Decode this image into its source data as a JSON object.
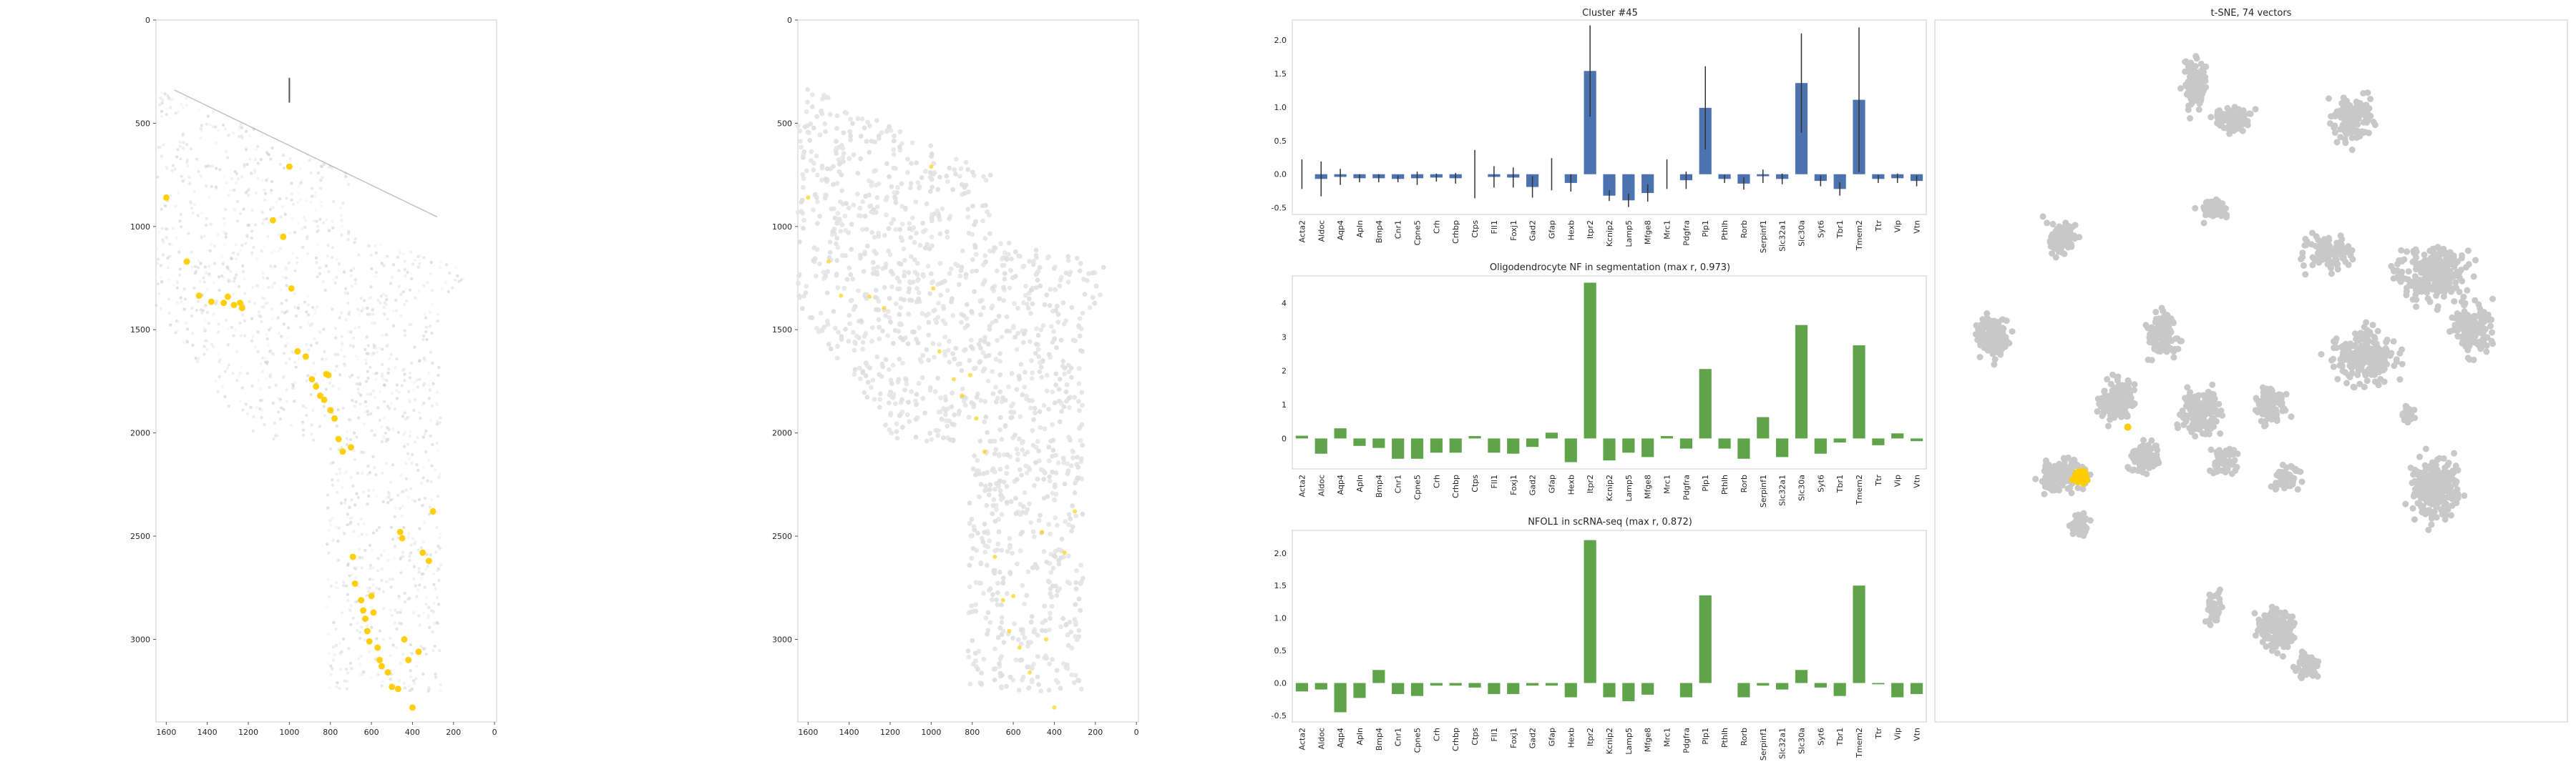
{
  "colors": {
    "bar_blue": "#4c72b0",
    "bar_green": "#5fa34b",
    "highlight": "#ffcc00",
    "tsne_grey": "#c8c8c8",
    "cell_grey": "#e2e2e2",
    "axis": "#cccccc"
  },
  "genes": [
    "Acta2",
    "Aldoc",
    "Aqp4",
    "Apln",
    "Bmp4",
    "Cnr1",
    "Cpne5",
    "Crh",
    "Crhbp",
    "Ctps",
    "Fll1",
    "Foxj1",
    "Gad2",
    "Gfap",
    "Hexb",
    "Itpr2",
    "Kcnip2",
    "Lamp5",
    "Mfge8",
    "Mrc1",
    "Pdgfra",
    "Plp1",
    "Pthlh",
    "Rorb",
    "Serpinf1",
    "Slc32a1",
    "Slc30a",
    "Syt6",
    "Tbr1",
    "Tmem2",
    "Ttr",
    "Vip",
    "Vtn"
  ],
  "chart_data": [
    {
      "type": "scatter",
      "id": "spatial-raw",
      "title": "",
      "x_ticks": [
        "1600",
        "1400",
        "1200",
        "1000",
        "800",
        "600",
        "400",
        "200",
        "0"
      ],
      "y_ticks": [
        "0",
        "500",
        "1000",
        "1500",
        "2000",
        "2500",
        "3000"
      ],
      "xlim": [
        1650,
        -10
      ],
      "ylim": [
        0,
        3400
      ],
      "highlighted_cells": [
        [
          1600,
          860
        ],
        [
          1500,
          1170
        ],
        [
          1440,
          1335
        ],
        [
          1380,
          1365
        ],
        [
          1320,
          1370
        ],
        [
          1300,
          1340
        ],
        [
          1270,
          1380
        ],
        [
          1240,
          1370
        ],
        [
          1230,
          1395
        ],
        [
          1080,
          970
        ],
        [
          1030,
          1050
        ],
        [
          1000,
          710
        ],
        [
          990,
          1300
        ],
        [
          960,
          1605
        ],
        [
          920,
          1630
        ],
        [
          890,
          1740
        ],
        [
          870,
          1775
        ],
        [
          850,
          1820
        ],
        [
          830,
          1840
        ],
        [
          820,
          1715
        ],
        [
          810,
          1720
        ],
        [
          800,
          1890
        ],
        [
          780,
          1930
        ],
        [
          760,
          2030
        ],
        [
          740,
          2090
        ],
        [
          700,
          2070
        ],
        [
          690,
          2600
        ],
        [
          680,
          2730
        ],
        [
          650,
          2810
        ],
        [
          640,
          2860
        ],
        [
          630,
          2900
        ],
        [
          620,
          2960
        ],
        [
          610,
          3010
        ],
        [
          600,
          2790
        ],
        [
          590,
          2870
        ],
        [
          570,
          3040
        ],
        [
          560,
          3100
        ],
        [
          550,
          3130
        ],
        [
          520,
          3160
        ],
        [
          500,
          3230
        ],
        [
          470,
          3240
        ],
        [
          460,
          2480
        ],
        [
          450,
          2510
        ],
        [
          440,
          3000
        ],
        [
          420,
          3100
        ],
        [
          400,
          3330
        ],
        [
          370,
          3060
        ],
        [
          350,
          2580
        ],
        [
          320,
          2620
        ],
        [
          300,
          2380
        ]
      ]
    },
    {
      "type": "scatter",
      "id": "spatial-segmentation",
      "title": "",
      "x_ticks": [
        "1600",
        "1400",
        "1200",
        "1000",
        "800",
        "600",
        "400",
        "200",
        "0"
      ],
      "y_ticks": [
        "0",
        "500",
        "1000",
        "1500",
        "2000",
        "2500",
        "3000"
      ],
      "xlim": [
        1650,
        -10
      ],
      "ylim": [
        0,
        3400
      ],
      "highlighted_cells": [
        [
          1600,
          860
        ],
        [
          1500,
          1170
        ],
        [
          1440,
          1335
        ],
        [
          1300,
          1340
        ],
        [
          1230,
          1395
        ],
        [
          1000,
          710
        ],
        [
          990,
          1300
        ],
        [
          960,
          1605
        ],
        [
          890,
          1740
        ],
        [
          850,
          1820
        ],
        [
          810,
          1720
        ],
        [
          780,
          1930
        ],
        [
          740,
          2090
        ],
        [
          690,
          2600
        ],
        [
          650,
          2810
        ],
        [
          620,
          2960
        ],
        [
          600,
          2790
        ],
        [
          570,
          3040
        ],
        [
          520,
          3160
        ],
        [
          460,
          2480
        ],
        [
          440,
          3000
        ],
        [
          400,
          3330
        ],
        [
          350,
          2580
        ],
        [
          300,
          2380
        ]
      ]
    },
    {
      "type": "bar",
      "id": "cluster-profile",
      "title": "Cluster #45",
      "ylim": [
        -0.6,
        2.3
      ],
      "y_ticks": [
        -0.5,
        0.0,
        0.5,
        1.0,
        1.5,
        2.0
      ],
      "values": [
        0.0,
        -0.07,
        -0.04,
        -0.06,
        -0.06,
        -0.07,
        -0.06,
        -0.05,
        -0.06,
        0.0,
        -0.04,
        -0.05,
        -0.19,
        0.0,
        -0.13,
        1.54,
        -0.32,
        -0.39,
        -0.28,
        0.0,
        -0.09,
        0.99,
        -0.07,
        -0.14,
        -0.03,
        -0.07,
        1.36,
        -0.1,
        -0.22,
        1.11,
        -0.07,
        -0.06,
        -0.1
      ],
      "errors": [
        0.22,
        0.26,
        0.12,
        0.06,
        0.06,
        0.05,
        0.1,
        0.06,
        0.08,
        0.36,
        0.16,
        0.15,
        0.16,
        0.24,
        0.13,
        0.68,
        0.08,
        0.1,
        0.13,
        0.22,
        0.13,
        0.62,
        0.06,
        0.09,
        0.1,
        0.08,
        0.74,
        0.08,
        0.1,
        1.08,
        0.06,
        0.07,
        0.08
      ]
    },
    {
      "type": "bar",
      "id": "oligo-nf-profile",
      "title": "Oligodendrocyte NF in segmentation (max r, 0.973)",
      "ylim": [
        -0.9,
        4.8
      ],
      "y_ticks": [
        0,
        1,
        2,
        3,
        4
      ],
      "values": [
        0.08,
        -0.45,
        0.3,
        -0.22,
        -0.28,
        -0.6,
        -0.6,
        -0.42,
        -0.42,
        0.07,
        -0.42,
        -0.45,
        -0.25,
        0.17,
        -0.7,
        4.6,
        -0.65,
        -0.42,
        -0.55,
        0.07,
        -0.3,
        2.05,
        -0.3,
        -0.6,
        0.63,
        -0.55,
        3.35,
        -0.45,
        -0.12,
        2.75,
        -0.2,
        0.15,
        -0.08
      ]
    },
    {
      "type": "bar",
      "id": "nfol1-profile",
      "title": "NFOL1 in scRNA-seq (max r, 0.872)",
      "ylim": [
        -0.6,
        2.35
      ],
      "y_ticks": [
        -0.5,
        0.0,
        0.5,
        1.0,
        1.5,
        2.0
      ],
      "values": [
        -0.13,
        -0.1,
        -0.45,
        -0.23,
        0.2,
        -0.17,
        -0.2,
        -0.04,
        -0.04,
        -0.07,
        -0.17,
        -0.17,
        -0.04,
        -0.04,
        -0.22,
        2.2,
        -0.22,
        -0.28,
        -0.18,
        0.0,
        -0.22,
        1.35,
        0.0,
        -0.22,
        -0.04,
        -0.1,
        0.2,
        -0.07,
        -0.2,
        1.5,
        -0.02,
        -0.22,
        -0.17
      ]
    },
    {
      "type": "scatter",
      "id": "tsne",
      "title": "t-SNE, 74 vectors",
      "highlight_cluster": "Cluster #45"
    }
  ]
}
